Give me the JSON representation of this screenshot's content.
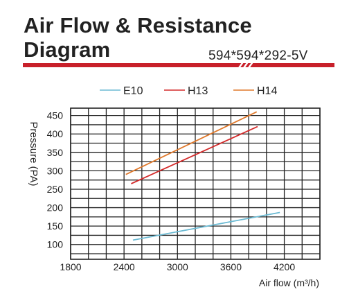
{
  "header": {
    "title_line1": "Air Flow & Resistance",
    "title_line2": "Diagram",
    "model": "594*594*292-5V",
    "accent_color": "#c8202a"
  },
  "chart_data": {
    "type": "line",
    "title": "Air Flow & Resistance Diagram",
    "xlabel": "Air flow (m³/h)",
    "ylabel": "Pressure (PA)",
    "xlim": [
      1800,
      4600
    ],
    "ylim": [
      60,
      470
    ],
    "x_ticks": [
      1800,
      2400,
      3000,
      3600,
      4200
    ],
    "y_ticks": [
      100,
      150,
      200,
      250,
      300,
      350,
      400,
      450
    ],
    "grid": true,
    "legend_position": "top",
    "series": [
      {
        "name": "E10",
        "color": "#6bbad3",
        "points": [
          [
            2500,
            112
          ],
          [
            4150,
            187
          ]
        ]
      },
      {
        "name": "H13",
        "color": "#d42a2a",
        "points": [
          [
            2480,
            265
          ],
          [
            3900,
            420
          ]
        ]
      },
      {
        "name": "H14",
        "color": "#e0782a",
        "points": [
          [
            2420,
            290
          ],
          [
            3890,
            460
          ]
        ]
      }
    ]
  }
}
